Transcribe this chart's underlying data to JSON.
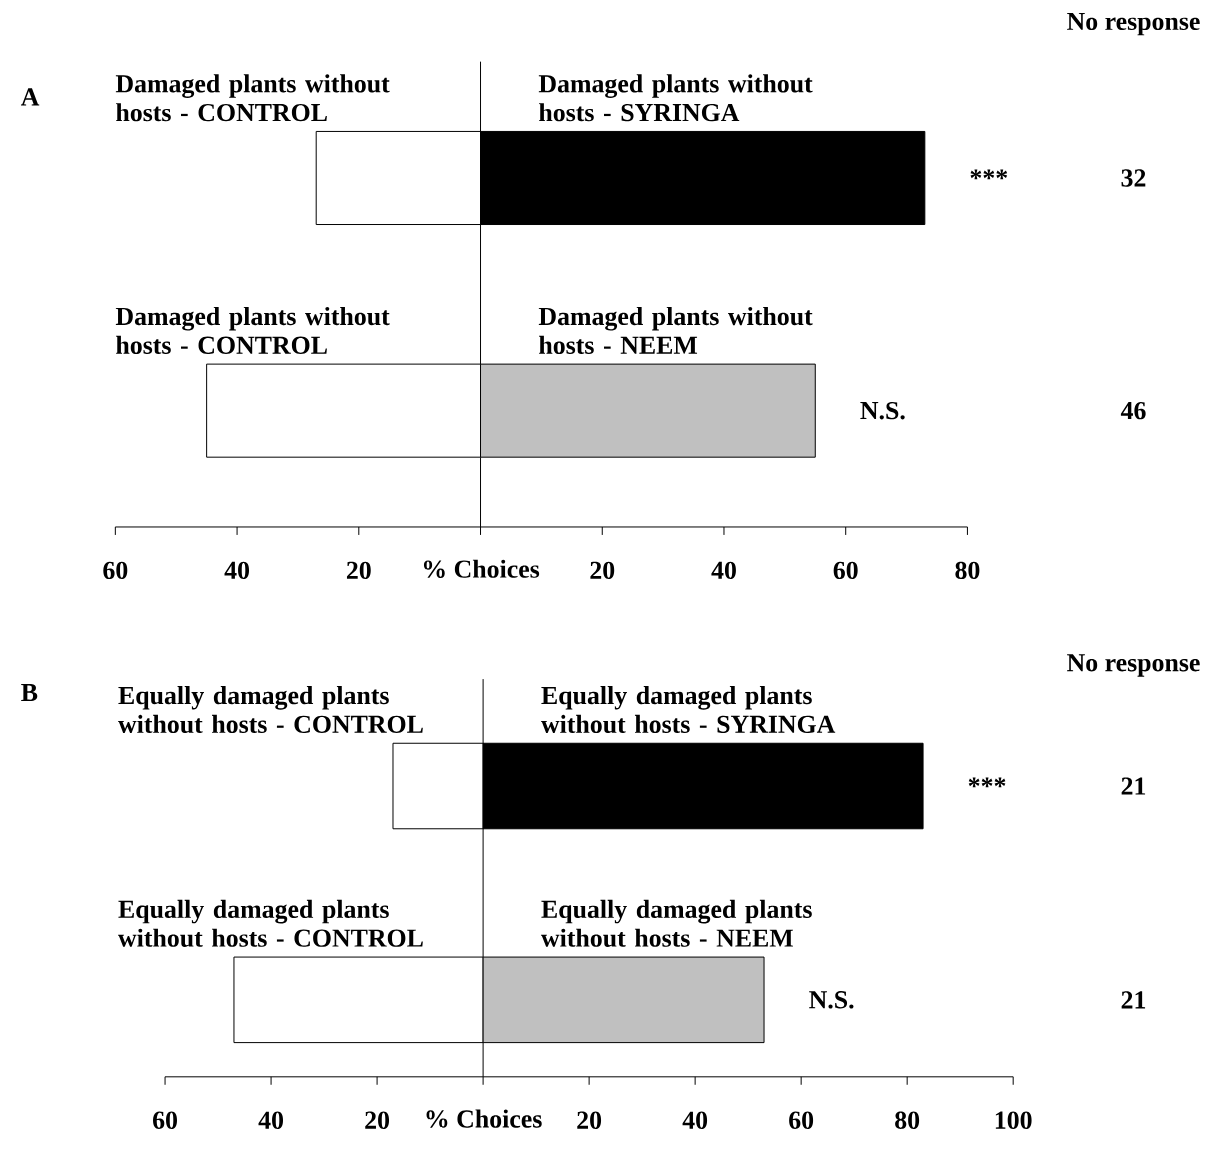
{
  "chart_data": [
    {
      "type": "bar",
      "orientation": "horizontal",
      "stacked": true,
      "title": "A",
      "xlabel": "% Choices",
      "categories": [
        "Damaged plants without hosts - SYRINGA",
        "Damaged plants without hosts - NEEM"
      ],
      "series": [
        {
          "color": "#ffffff",
          "values": [
            -27,
            -45
          ]
        },
        {
          "colors": [
            "#000000",
            "#c0c0c0"
          ],
          "values": [
            73,
            55
          ]
        }
      ],
      "xlim": [
        -60,
        80
      ],
      "xticks": [
        {
          "value": -60,
          "label": "60"
        },
        {
          "value": -40,
          "label": "40"
        },
        {
          "value": -20,
          "label": "20"
        },
        {
          "value": 0,
          "label": null
        },
        20,
        40,
        60,
        80
      ],
      "annotations": [
        "Damaged plants without hosts - CONTROL",
        "***",
        "32",
        "Damaged plants without hosts - CONTROL",
        "N.S.",
        "46",
        "No response"
      ]
    },
    {
      "type": "bar",
      "orientation": "horizontal",
      "stacked": true,
      "title": "B",
      "xlabel": "% Choices",
      "categories": [
        "Equally damaged plants without hosts - SYRINGA",
        "Equally damaged plants without hosts - NEEM"
      ],
      "series": [
        {
          "color": "#ffffff",
          "values": [
            -17,
            -47
          ]
        },
        {
          "colors": [
            "#000000",
            "#c0c0c0"
          ],
          "values": [
            83,
            53
          ]
        }
      ],
      "xlim": [
        -60,
        100
      ],
      "xticks": [
        {
          "value": -60,
          "label": "60"
        },
        {
          "value": -40,
          "label": "40"
        },
        {
          "value": -20,
          "label": "20"
        },
        {
          "value": 0,
          "label": null
        },
        20,
        40,
        60,
        80,
        100
      ],
      "annotations": [
        "Equally damaged plants without hosts - CONTROL",
        "***",
        "21",
        "Equally damaged plants without hosts - CONTROL",
        "N.S.",
        "21",
        "No response"
      ]
    }
  ]
}
